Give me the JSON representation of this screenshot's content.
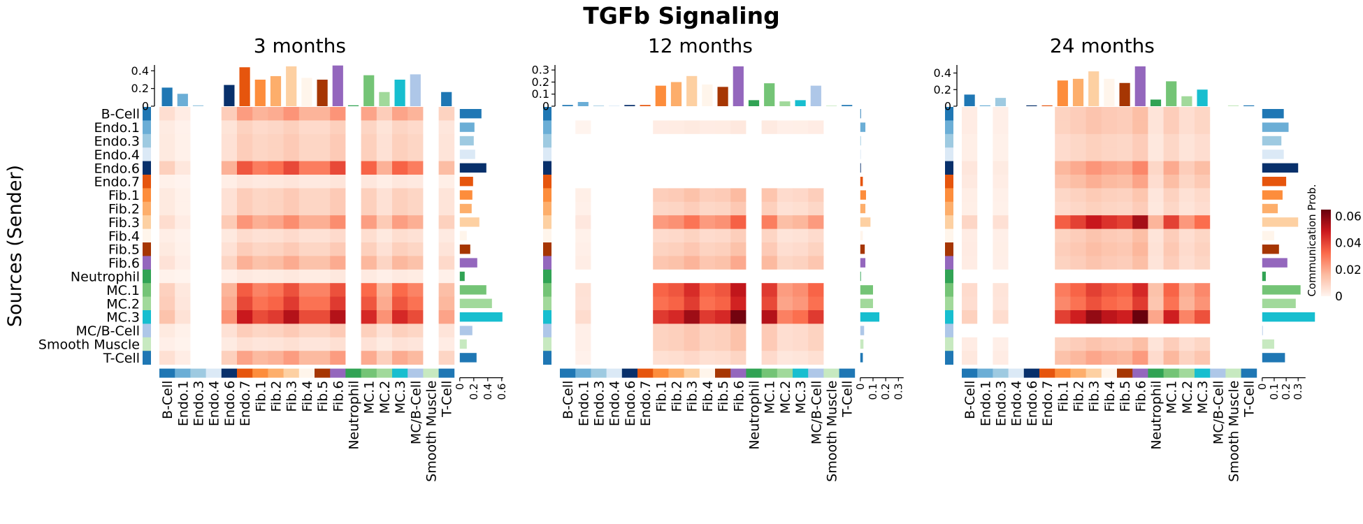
{
  "title": "TGFb Signaling",
  "ylabel": "Sources (Sender)",
  "colorbar": {
    "label": "Communication Prob.",
    "ticks": [
      0,
      0.02,
      0.04,
      0.06
    ],
    "tick_labels": [
      "0",
      "0.02",
      "0.04",
      "0.06"
    ],
    "max": 0.065,
    "colors": [
      "#fff5f0",
      "#fcbba1",
      "#fb6a4a",
      "#cb181d",
      "#67000d"
    ]
  },
  "cell_types": [
    "B-Cell",
    "Endo.1",
    "Endo.3",
    "Endo.4",
    "Endo.6",
    "Endo.7",
    "Fib.1",
    "Fib.2",
    "Fib.3",
    "Fib.4",
    "Fib.5",
    "Fib.6",
    "Neutrophil",
    "MC.1",
    "MC.2",
    "MC.3",
    "MC/B-Cell",
    "Smooth Muscle",
    "T-Cell"
  ],
  "cell_colors": [
    "#1f77b4",
    "#6baed6",
    "#9ecae1",
    "#dbe9f6",
    "#08306b",
    "#e6550d",
    "#fd8d3c",
    "#fdae6b",
    "#fdd0a2",
    "#fff5eb",
    "#a63603",
    "#9467bd",
    "#31a354",
    "#74c476",
    "#a1d99b",
    "#17becf",
    "#aec7e8",
    "#c7e9c0",
    "#1f77b4"
  ],
  "chart_data": [
    {
      "type": "heatmap",
      "title": "3 months",
      "rows": [
        "B-Cell",
        "Endo.1",
        "Endo.3",
        "Endo.4",
        "Endo.6",
        "Endo.7",
        "Fib.1",
        "Fib.2",
        "Fib.3",
        "Fib.4",
        "Fib.5",
        "Fib.6",
        "Neutrophil",
        "MC.1",
        "MC.2",
        "MC.3",
        "MC/B-Cell",
        "Smooth Muscle",
        "T-Cell"
      ],
      "columns": [
        "B-Cell",
        "Endo.1",
        "Endo.3",
        "Endo.4",
        "Endo.6",
        "Endo.7",
        "Fib.1",
        "Fib.2",
        "Fib.3",
        "Fib.4",
        "Fib.5",
        "Fib.6",
        "Neutrophil",
        "MC.1",
        "MC.2",
        "MC.3",
        "MC/B-Cell",
        "Smooth Muscle",
        "T-Cell"
      ],
      "row_pattern": [
        0.008,
        0.003,
        0,
        0,
        0.014,
        0.028,
        0.022,
        0.024,
        0.03,
        0.022,
        0.022,
        0.03,
        0,
        0.026,
        0.014,
        0.026,
        0.022,
        0,
        0.012
      ],
      "row_scale": [
        0.8,
        0.35,
        0.4,
        0.4,
        1.3,
        0.15,
        0.4,
        0.4,
        0.85,
        0.25,
        0.4,
        0.65,
        0.12,
        1.25,
        1.4,
        1.75,
        0.4,
        0.2,
        0.75
      ],
      "col_sums": [
        0.21,
        0.14,
        0.01,
        0.0,
        0.24,
        0.44,
        0.3,
        0.34,
        0.45,
        0.32,
        0.3,
        0.46,
        0.01,
        0.35,
        0.16,
        0.3,
        0.36,
        0.0,
        0.16
      ],
      "col_ylim": [
        0,
        0.45
      ],
      "col_ticks": [
        "0",
        "0.2",
        "0.4"
      ],
      "row_sums": [
        0.31,
        0.21,
        0.2,
        0.22,
        0.38,
        0.19,
        0.18,
        0.17,
        0.28,
        0.1,
        0.15,
        0.25,
        0.07,
        0.38,
        0.46,
        0.61,
        0.18,
        0.1,
        0.24
      ],
      "row_xlim": [
        0,
        0.6
      ],
      "row_ticks": [
        "0",
        "0.2",
        "0.4",
        "0.6"
      ]
    },
    {
      "type": "heatmap",
      "title": "12 months",
      "rows": [
        "B-Cell",
        "Endo.1",
        "Endo.3",
        "Endo.4",
        "Endo.6",
        "Endo.7",
        "Fib.1",
        "Fib.2",
        "Fib.3",
        "Fib.4",
        "Fib.5",
        "Fib.6",
        "Neutrophil",
        "MC.1",
        "MC.2",
        "MC.3",
        "MC/B-Cell",
        "Smooth Muscle",
        "T-Cell"
      ],
      "columns": [
        "B-Cell",
        "Endo.1",
        "Endo.3",
        "Endo.4",
        "Endo.6",
        "Endo.7",
        "Fib.1",
        "Fib.2",
        "Fib.3",
        "Fib.4",
        "Fib.5",
        "Fib.6",
        "Neutrophil",
        "MC.1",
        "MC.2",
        "MC.3",
        "MC/B-Cell",
        "Smooth Muscle",
        "T-Cell"
      ],
      "row_pattern": [
        0,
        0.004,
        0,
        0,
        0,
        0,
        0.024,
        0.026,
        0.032,
        0.024,
        0.026,
        0.036,
        0,
        0.03,
        0.016,
        0.018,
        0.024,
        0,
        0
      ],
      "row_scale": [
        0,
        0.1,
        0,
        0,
        0,
        0,
        0.45,
        0.35,
        0.95,
        0.3,
        0.4,
        0.55,
        0,
        1.4,
        1.3,
        1.75,
        0.4,
        0.4,
        0.25
      ],
      "col_sums": [
        0.01,
        0.035,
        0.005,
        0.005,
        0.01,
        0.01,
        0.17,
        0.2,
        0.25,
        0.18,
        0.16,
        0.33,
        0.05,
        0.19,
        0.04,
        0.05,
        0.17,
        0.005,
        0.01
      ],
      "col_ylim": [
        0,
        0.33
      ],
      "col_ticks": [
        "0",
        "0.1",
        "0.2",
        "0.3"
      ],
      "row_sums": [
        0.005,
        0.04,
        0.005,
        0.005,
        0.005,
        0.02,
        0.045,
        0.04,
        0.08,
        0.02,
        0.035,
        0.04,
        0.005,
        0.1,
        0.1,
        0.15,
        0.03,
        0.025,
        0.02
      ],
      "row_xlim": [
        0,
        0.33
      ],
      "row_ticks": [
        "0",
        "0.1",
        "0.2",
        "0.3"
      ]
    },
    {
      "type": "heatmap",
      "title": "24 months",
      "rows": [
        "B-Cell",
        "Endo.1",
        "Endo.3",
        "Endo.4",
        "Endo.6",
        "Endo.7",
        "Fib.1",
        "Fib.2",
        "Fib.3",
        "Fib.4",
        "Fib.5",
        "Fib.6",
        "Neutrophil",
        "MC.1",
        "MC.2",
        "MC.3",
        "MC/B-Cell",
        "Smooth Muscle",
        "T-Cell"
      ],
      "columns": [
        "B-Cell",
        "Endo.1",
        "Endo.3",
        "Endo.4",
        "Endo.6",
        "Endo.7",
        "Fib.1",
        "Fib.2",
        "Fib.3",
        "Fib.4",
        "Fib.5",
        "Fib.6",
        "Neutrophil",
        "MC.1",
        "MC.2",
        "MC.3",
        "MC/B-Cell",
        "Smooth Muscle",
        "T-Cell"
      ],
      "row_pattern": [
        0.006,
        0,
        0.004,
        0,
        0,
        0,
        0.024,
        0.028,
        0.034,
        0.03,
        0.028,
        0.038,
        0.012,
        0.028,
        0.016,
        0.022,
        0,
        0,
        0
      ],
      "row_scale": [
        0.4,
        0.4,
        0.3,
        0.3,
        0.7,
        0.55,
        0.35,
        0.3,
        1.45,
        0.4,
        0.45,
        0.4,
        0,
        1.2,
        1.1,
        1.7,
        0,
        0.4,
        0.6
      ],
      "col_sums": [
        0.14,
        0.01,
        0.1,
        0.0,
        0.01,
        0.01,
        0.31,
        0.33,
        0.42,
        0.33,
        0.28,
        0.48,
        0.08,
        0.3,
        0.12,
        0.2,
        0.0,
        0.01,
        0.01
      ],
      "col_ylim": [
        0,
        0.48
      ],
      "col_ticks": [
        "0",
        "0.2",
        "0.4"
      ],
      "row_sums": [
        0.18,
        0.22,
        0.16,
        0.18,
        0.3,
        0.2,
        0.17,
        0.13,
        0.3,
        0.1,
        0.14,
        0.21,
        0.03,
        0.32,
        0.28,
        0.44,
        0.005,
        0.1,
        0.19
      ],
      "row_xlim": [
        0,
        0.35
      ],
      "row_ticks": [
        "0",
        "0.1",
        "0.2",
        "0.3"
      ]
    }
  ]
}
